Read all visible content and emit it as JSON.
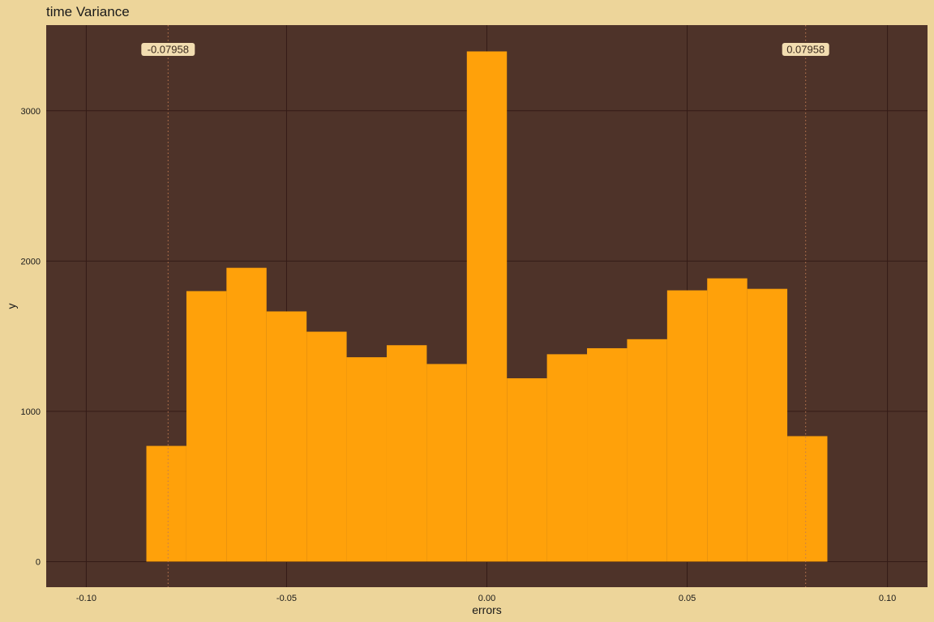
{
  "colors": {
    "background": "#EDD59A",
    "panel": "#4E3329",
    "grid": "#341B17",
    "bar": "#FFA10A",
    "ref_line": "#C07A52",
    "label_fill": "#F2DDB0"
  },
  "chart_data": {
    "type": "bar",
    "title": "time Variance",
    "xlabel": "errors",
    "ylabel": "y",
    "xlim": [
      -0.11,
      0.11
    ],
    "ylim": [
      -170,
      3570
    ],
    "x_ticks": [
      -0.1,
      -0.05,
      0.0,
      0.05,
      0.1
    ],
    "x_tick_labels": [
      "-0.10",
      "-0.05",
      "0.00",
      "0.05",
      "0.10"
    ],
    "y_ticks": [
      0,
      1000,
      2000,
      3000
    ],
    "y_tick_labels": [
      "0",
      "1000",
      "2000",
      "3000"
    ],
    "grid": true,
    "bin_width": 0.01,
    "bins": [
      {
        "x0": -0.085,
        "x1": -0.075,
        "count": 770
      },
      {
        "x0": -0.075,
        "x1": -0.065,
        "count": 1800
      },
      {
        "x0": -0.065,
        "x1": -0.055,
        "count": 1955
      },
      {
        "x0": -0.055,
        "x1": -0.045,
        "count": 1665
      },
      {
        "x0": -0.045,
        "x1": -0.035,
        "count": 1530
      },
      {
        "x0": -0.035,
        "x1": -0.025,
        "count": 1360
      },
      {
        "x0": -0.025,
        "x1": -0.015,
        "count": 1440
      },
      {
        "x0": -0.015,
        "x1": -0.005,
        "count": 1315
      },
      {
        "x0": -0.005,
        "x1": 0.005,
        "count": 3395
      },
      {
        "x0": 0.005,
        "x1": 0.015,
        "count": 1220
      },
      {
        "x0": 0.015,
        "x1": 0.025,
        "count": 1380
      },
      {
        "x0": 0.025,
        "x1": 0.035,
        "count": 1420
      },
      {
        "x0": 0.035,
        "x1": 0.045,
        "count": 1480
      },
      {
        "x0": 0.045,
        "x1": 0.055,
        "count": 1805
      },
      {
        "x0": 0.055,
        "x1": 0.065,
        "count": 1885
      },
      {
        "x0": 0.065,
        "x1": 0.075,
        "count": 1815
      },
      {
        "x0": 0.075,
        "x1": 0.085,
        "count": 835
      }
    ],
    "reference_lines": [
      {
        "x": -0.07958,
        "label": "-0.07958",
        "style": "dotted"
      },
      {
        "x": 0.07958,
        "label": "0.07958",
        "style": "dotted"
      }
    ]
  }
}
